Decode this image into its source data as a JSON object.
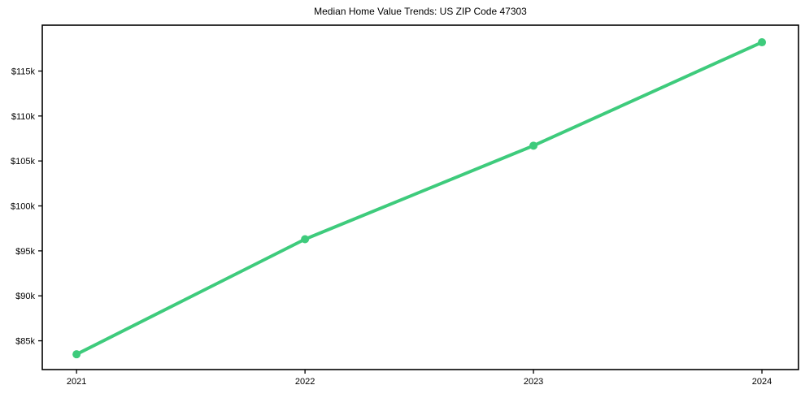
{
  "page": {
    "title": "Median Home Value Trends: US ZIP Code 47303"
  },
  "chart_data": {
    "type": "line",
    "title": "Median Home Value Trends: US ZIP Code 47303",
    "xlabel": "",
    "ylabel": "",
    "x": [
      2021,
      2022,
      2023,
      2024
    ],
    "x_tick_labels": [
      "2021",
      "2022",
      "2023",
      "2024"
    ],
    "series": [
      {
        "name": "median-home-value",
        "values": [
          83500,
          96300,
          106700,
          118200
        ],
        "color": "#3ecb7c",
        "marker": "circle",
        "marker_radius": 5,
        "line_width": 4
      }
    ],
    "yticks": [
      {
        "value": 85000,
        "label": "$85k"
      },
      {
        "value": 90000,
        "label": "$90k"
      },
      {
        "value": 95000,
        "label": "$95k"
      },
      {
        "value": 100000,
        "label": "$100k"
      },
      {
        "value": 105000,
        "label": "$105k"
      },
      {
        "value": 110000,
        "label": "$110k"
      },
      {
        "value": 115000,
        "label": "$115k"
      }
    ],
    "ylim": [
      81800,
      120100
    ],
    "xlim": [
      2020.85,
      2024.16
    ],
    "grid": false,
    "legend": "none",
    "axis_color": "#000000",
    "text_color": "#000000",
    "background_color": "#ffffff"
  }
}
